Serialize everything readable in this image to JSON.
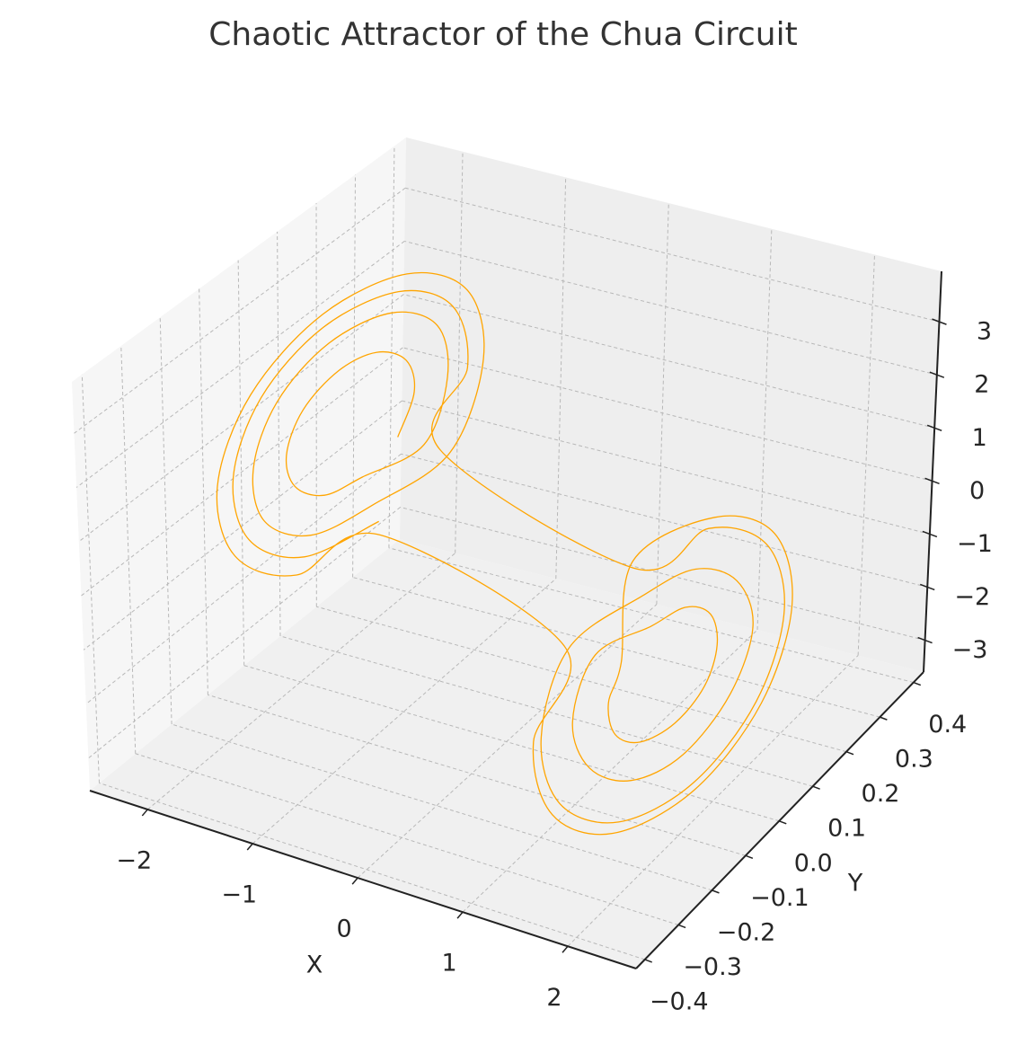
{
  "chart_data": {
    "type": "line3d",
    "title": "Chaotic Attractor of the Chua Circuit",
    "xlabel": "X",
    "ylabel": "Y",
    "xlim": [
      -2.55,
      2.65
    ],
    "ylim": [
      -0.426,
      0.43
    ],
    "zlim": [
      -3.6,
      3.95
    ],
    "xticks": [
      {
        "value": -2,
        "label": "−2"
      },
      {
        "value": -1,
        "label": "−1"
      },
      0,
      1,
      2
    ],
    "yticks": [
      {
        "value": -0.4,
        "label": "−0.4"
      },
      {
        "value": -0.3,
        "label": "−0.3"
      },
      {
        "value": -0.2,
        "label": "−0.2"
      },
      {
        "value": -0.1,
        "label": "−0.1"
      },
      {
        "value": 0,
        "label": "0.0"
      },
      0.1,
      0.2,
      0.3,
      0.4
    ],
    "zticks": [
      {
        "value": -3,
        "label": "−3"
      },
      {
        "value": -2,
        "label": "−2"
      },
      {
        "value": -1,
        "label": "−1"
      },
      0,
      1,
      2,
      3
    ],
    "grid": true,
    "series": [
      {
        "color": "#ffa500",
        "x": [
          -1.05,
          -1.14,
          -1.36,
          -1.64,
          -1.86,
          -1.95,
          -1.86,
          -1.64,
          -1.36,
          -1.14,
          -0.8,
          -0.93,
          -1.28,
          -1.72,
          -2.07,
          -2.2,
          -2.07,
          -1.72,
          -1.28,
          -0.93,
          -0.55,
          -0.73,
          -1.21,
          -1.79,
          -2.27,
          -2.45,
          -2.27,
          -1.79,
          -1.21,
          -0.73,
          0.55,
          0.73,
          1.21,
          1.79,
          2.27,
          2.45,
          2.27,
          1.79,
          1.21,
          0.73,
          1.1,
          1.18,
          1.38,
          1.62,
          1.82,
          1.9,
          1.82,
          1.62,
          1.38,
          1.18,
          0.85,
          0.97,
          1.3,
          1.7,
          2.03,
          2.15,
          2.03,
          1.7,
          1.3,
          0.97,
          0.6,
          0.77,
          1.22,
          1.78,
          2.23,
          2.4,
          2.23,
          1.78,
          1.22,
          0.77,
          -0.65,
          -0.81,
          -1.24,
          -1.76,
          -2.19,
          -2.35,
          -2.19,
          -1.76,
          -1.24,
          -0.81
        ],
        "y": [
          0,
          0.07,
          0.11,
          0.11,
          0.07,
          0,
          -0.07,
          -0.11,
          -0.11,
          -0.07,
          0,
          0.1,
          0.17,
          0.17,
          0.1,
          0,
          -0.1,
          -0.17,
          -0.17,
          -0.1,
          0,
          0.14,
          0.23,
          0.23,
          0.14,
          0,
          -0.14,
          -0.23,
          -0.23,
          -0.14,
          0,
          -0.14,
          -0.23,
          -0.23,
          -0.14,
          0,
          0.14,
          0.23,
          0.23,
          0.14,
          0,
          -0.06,
          -0.1,
          -0.1,
          -0.06,
          0,
          0.06,
          0.1,
          0.1,
          0.06,
          0,
          -0.1,
          -0.15,
          -0.15,
          -0.1,
          0,
          0.1,
          0.15,
          0.15,
          0.1,
          0,
          -0.13,
          -0.21,
          -0.21,
          -0.13,
          0,
          0.13,
          0.21,
          0.21,
          0.13,
          0,
          0.12,
          0.2,
          0.2,
          0.12,
          0,
          -0.12,
          -0.2,
          -0.2,
          -0.12
        ],
        "z": [
          1.5,
          1.9,
          2.14,
          2.14,
          1.9,
          1.5,
          1.1,
          0.86,
          0.86,
          1.1,
          1.5,
          2.12,
          2.5,
          2.5,
          2.12,
          1.5,
          0.88,
          0.5,
          0.5,
          0.88,
          1.5,
          2.34,
          2.86,
          2.86,
          2.34,
          1.5,
          0.66,
          0.14,
          0.14,
          0.66,
          -1.5,
          -2.34,
          -2.86,
          -2.86,
          -2.34,
          -1.5,
          -0.66,
          -0.14,
          -0.14,
          -0.66,
          -1.5,
          -1.85,
          -2.07,
          -2.07,
          -1.85,
          -1.5,
          -1.15,
          -0.93,
          -0.93,
          -1.15,
          -1.5,
          -2.07,
          -2.43,
          -2.43,
          -2.07,
          -1.5,
          -0.93,
          -0.57,
          -0.57,
          -0.93,
          -1.5,
          -2.29,
          -2.78,
          -2.78,
          -2.29,
          -1.5,
          -0.71,
          -0.22,
          -0.22,
          -0.71,
          1.5,
          2.25,
          2.71,
          2.71,
          2.25,
          1.5,
          0.75,
          0.29,
          0.29,
          0.75
        ]
      }
    ]
  }
}
